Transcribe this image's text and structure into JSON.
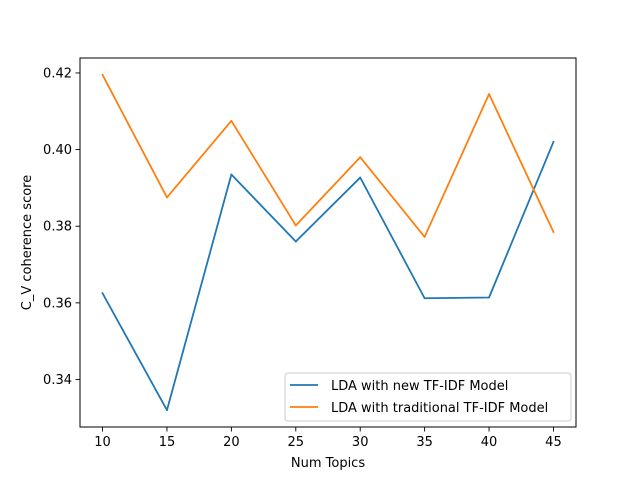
{
  "chart_data": {
    "type": "line",
    "x": [
      10,
      15,
      20,
      25,
      30,
      35,
      40,
      45
    ],
    "series": [
      {
        "name": "LDA with new TF-IDF Model",
        "values": [
          0.3625,
          0.332,
          0.3935,
          0.376,
          0.3927,
          0.3612,
          0.3614,
          0.402
        ],
        "color": "#1f77b4"
      },
      {
        "name": "LDA with traditional TF-IDF Model",
        "values": [
          0.4195,
          0.3875,
          0.4075,
          0.3802,
          0.398,
          0.3772,
          0.4145,
          0.3785
        ],
        "color": "#ff7f0e"
      }
    ],
    "xlabel": "Num Topics",
    "ylabel": "C_V coherence score",
    "xlim": [
      8.25,
      46.75
    ],
    "ylim": [
      0.3276,
      0.4239
    ],
    "xticks": [
      "10",
      "15",
      "20",
      "25",
      "30",
      "35",
      "40",
      "45"
    ],
    "yticks": [
      "0.34",
      "0.36",
      "0.38",
      "0.40",
      "0.42"
    ],
    "ytick_values": [
      0.34,
      0.36,
      0.38,
      0.4,
      0.42
    ],
    "grid": false,
    "legend_position": "lower-right"
  }
}
